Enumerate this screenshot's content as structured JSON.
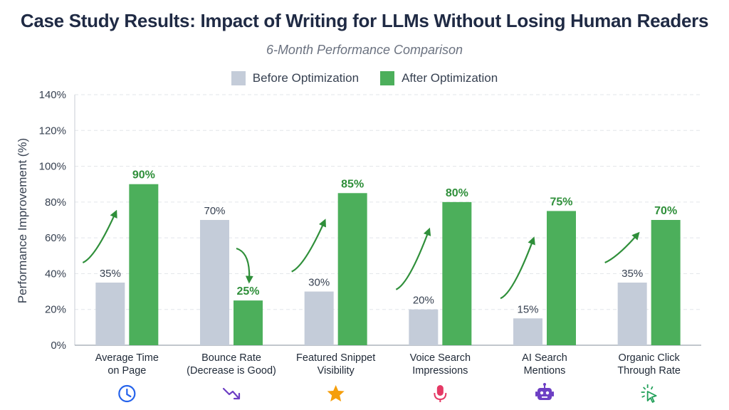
{
  "title": "Case Study Results: Impact of Writing for LLMs Without Losing Human Readers",
  "subtitle": "6-Month Performance Comparison",
  "legend": [
    {
      "label": "Before Optimization",
      "color": "#c4ccd9"
    },
    {
      "label": "After Optimization",
      "color": "#4caf5b"
    }
  ],
  "colors": {
    "before": "#c4ccd9",
    "after": "#4caf5b",
    "after_label": "#2f8f3a",
    "arrow": "#2f8f3a"
  },
  "chart_data": {
    "type": "bar",
    "title": "Case Study Results: Impact of Writing for LLMs Without Losing Human Readers",
    "subtitle": "6-Month Performance Comparison",
    "ylabel": "Performance Improvement (%)",
    "xlabel": "",
    "ylim": [
      0,
      140
    ],
    "yticks": [
      0,
      20,
      40,
      60,
      80,
      100,
      120,
      140
    ],
    "ytick_labels": [
      "0%",
      "20%",
      "40%",
      "60%",
      "80%",
      "100%",
      "120%",
      "140%"
    ],
    "grid": true,
    "legend_position": "top-center",
    "categories": [
      [
        "Average Time",
        "on Page"
      ],
      [
        "Bounce Rate",
        "(Decrease is Good)"
      ],
      [
        "Featured Snippet",
        "Visibility"
      ],
      [
        "Voice Search",
        "Impressions"
      ],
      [
        "AI Search",
        "Mentions"
      ],
      [
        "Organic Click",
        "Through Rate"
      ]
    ],
    "series": [
      {
        "name": "Before Optimization",
        "values": [
          35,
          70,
          30,
          20,
          15,
          35
        ],
        "labels": [
          "35%",
          "70%",
          "30%",
          "20%",
          "15%",
          "35%"
        ]
      },
      {
        "name": "After Optimization",
        "values": [
          90,
          25,
          85,
          80,
          75,
          70
        ],
        "labels": [
          "90%",
          "25%",
          "85%",
          "80%",
          "75%",
          "70%"
        ]
      }
    ],
    "trend": [
      "up",
      "down",
      "up",
      "up",
      "up",
      "up"
    ],
    "icons": [
      "clock-icon",
      "trend-down-icon",
      "star-icon",
      "microphone-icon",
      "robot-icon",
      "cursor-click-icon"
    ],
    "icon_colors": [
      "#2563eb",
      "#6d3fc4",
      "#f59e0b",
      "#e53965",
      "#6d3fc4",
      "#22a05a"
    ]
  }
}
